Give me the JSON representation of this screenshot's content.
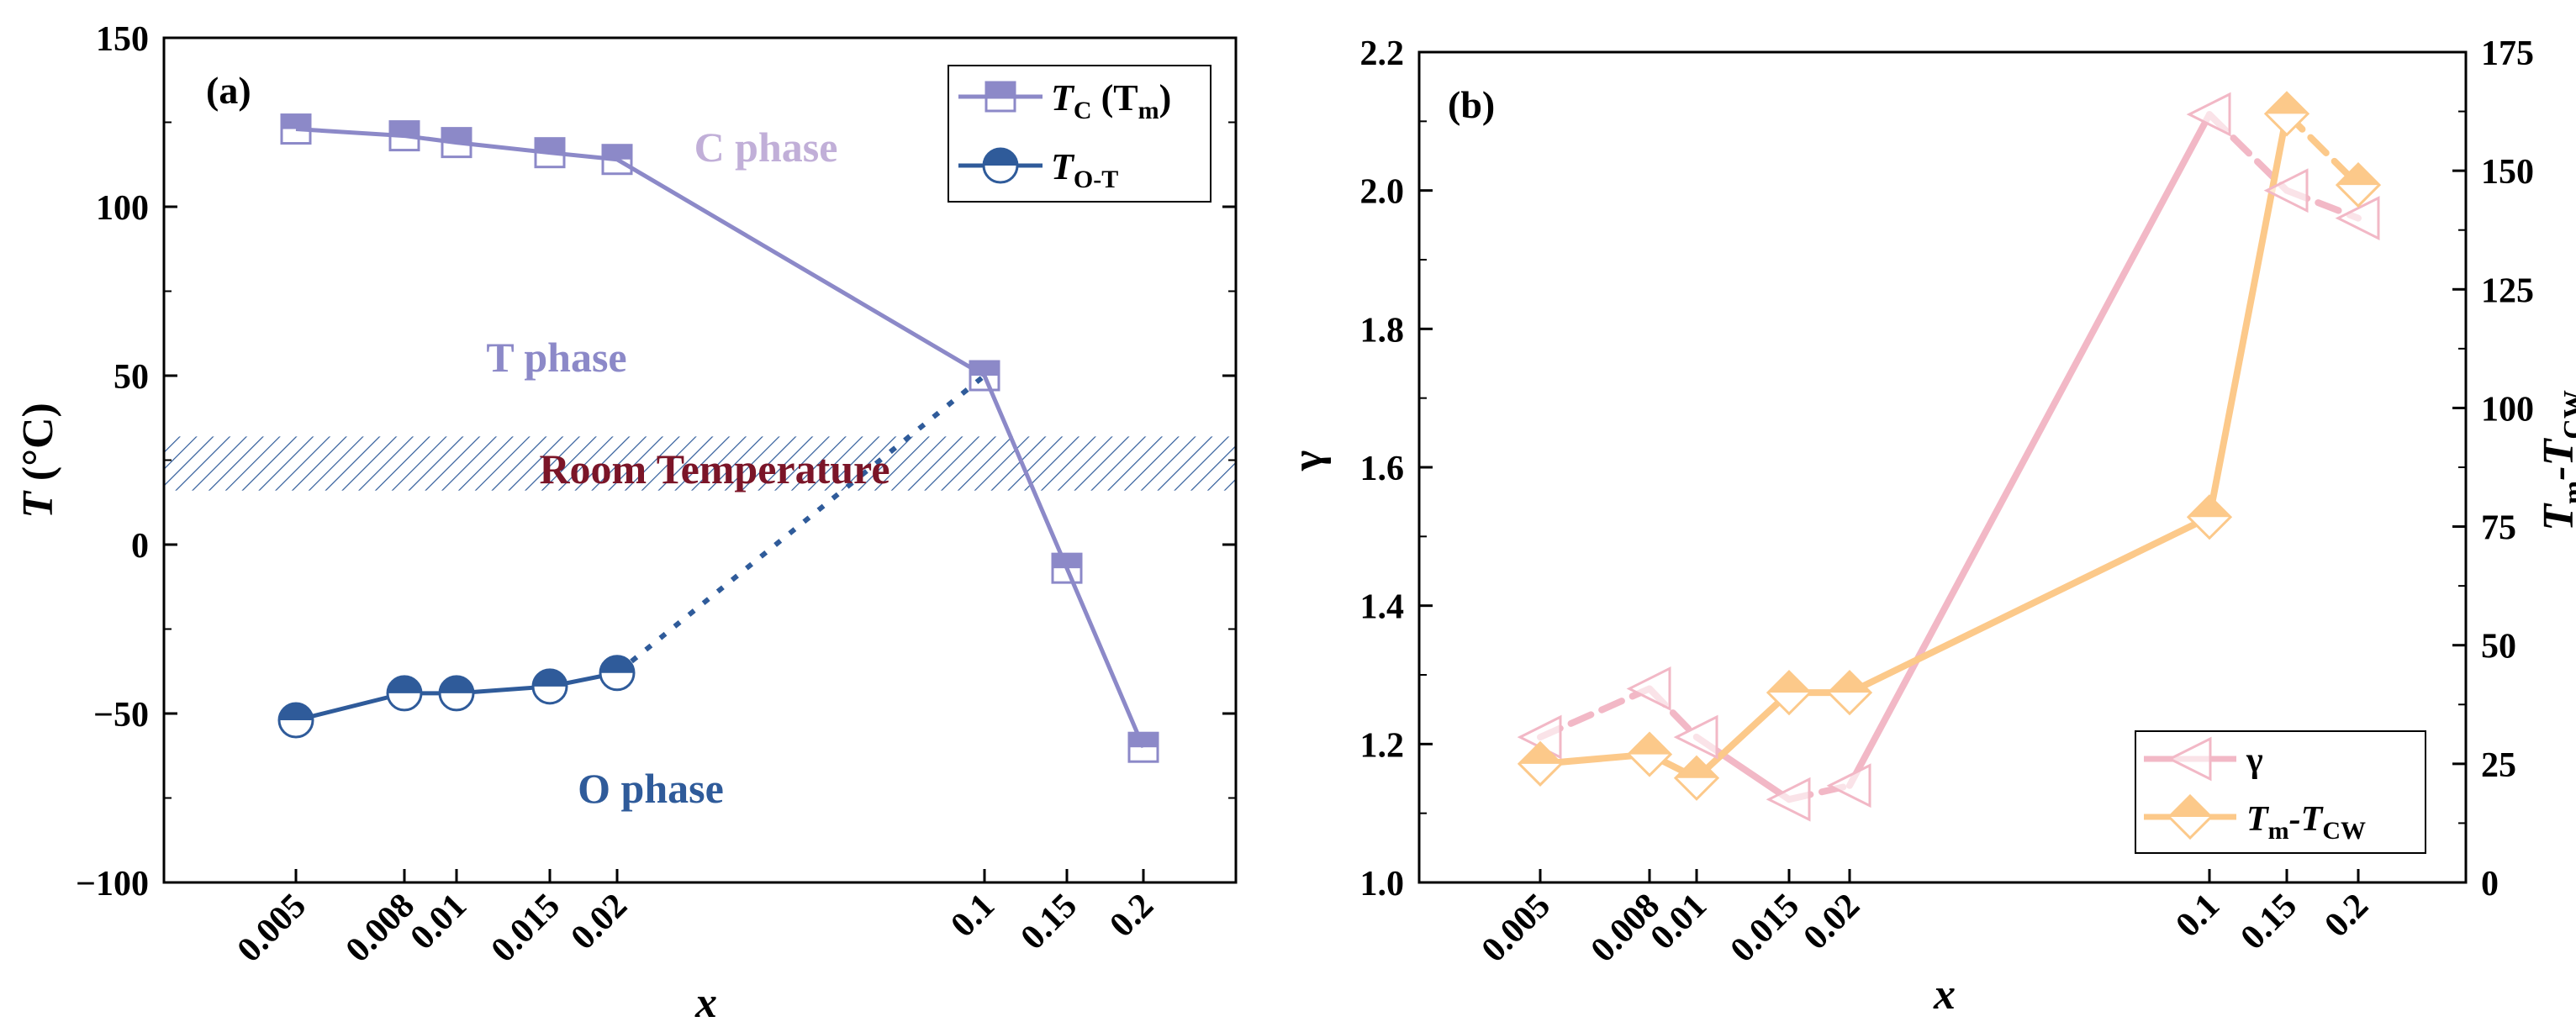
{
  "chart_data": [
    {
      "type": "line",
      "panel_label": "(a)",
      "ylabel_var": "T",
      "ylabel_unit": " (°C)",
      "xlabel": "x",
      "categories": [
        "0.005",
        "0.008",
        "0.01",
        "0.015",
        "0.02",
        "0.1",
        "0.15",
        "0.2"
      ],
      "ylim": [
        -100,
        150
      ],
      "yticks": [
        "150",
        "100",
        "50",
        "0",
        "−50",
        "−100"
      ],
      "series": [
        {
          "name": "TC (Tm)",
          "legend_main": "T",
          "legend_sub": "C",
          "legend_tail": " (T",
          "legend_tail_sub": "m",
          "legend_close": ")",
          "color": "#8c89c8",
          "marker": "half-filled-square",
          "values": [
            123,
            121,
            119,
            116,
            114,
            50,
            -7,
            -60
          ]
        },
        {
          "name": "TO-T",
          "legend_main": "T",
          "legend_sub": "O-T",
          "color": "#2f5b9a",
          "marker": "half-filled-circle",
          "values": [
            -52,
            -44,
            -44,
            -42,
            -38,
            null,
            null,
            null
          ],
          "dotted_extension_to": 50
        }
      ],
      "annotations": {
        "c_phase": "C phase",
        "t_phase": "T phase",
        "o_phase": "O phase",
        "room_temperature": "Room Temperature",
        "room_band": [
          16,
          32
        ]
      }
    },
    {
      "type": "line",
      "panel_label": "(b)",
      "xlabel": "x",
      "ylabel_left": "γ",
      "ylabel_right_main": "T",
      "ylabel_right_sub1": "m",
      "ylabel_right_mid": "-T",
      "ylabel_right_sub2": "CW",
      "categories": [
        "0.005",
        "0.008",
        "0.01",
        "0.015",
        "0.02",
        "0.1",
        "0.15",
        "0.2"
      ],
      "ylim_left": [
        1.0,
        2.2
      ],
      "yticks_left": [
        "2.2",
        "2.0",
        "1.8",
        "1.6",
        "1.4",
        "1.2",
        "1.0"
      ],
      "ylim_right": [
        0,
        175
      ],
      "yticks_right": [
        "175",
        "150",
        "125",
        "100",
        "75",
        "50",
        "25",
        "0"
      ],
      "series": [
        {
          "name": "γ",
          "axis": "left",
          "color": "#f2b8c6",
          "marker": "left-triangle",
          "values": [
            1.21,
            1.28,
            1.21,
            1.12,
            1.14,
            2.11,
            2.0,
            1.96
          ]
        },
        {
          "name": "Tm-TCW",
          "axis": "right",
          "color": "#fcc98a",
          "marker": "half-filled-diamond",
          "values": [
            25,
            27,
            22,
            40,
            40,
            77,
            162,
            147
          ]
        }
      ]
    }
  ]
}
